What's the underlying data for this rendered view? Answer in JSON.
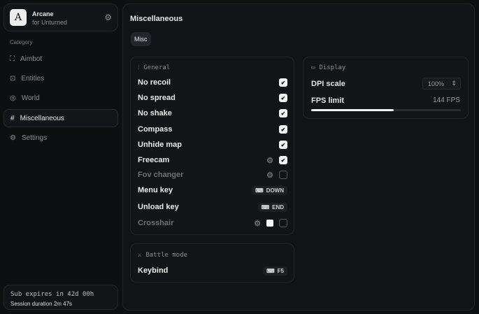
{
  "app": {
    "logo_letter": "A",
    "name": "Arcane",
    "subtitle": "for Unturned"
  },
  "sidebar": {
    "category_label": "Category",
    "items": [
      {
        "label": "Aimbot",
        "icon": "crosshair-icon",
        "active": false
      },
      {
        "label": "Entities",
        "icon": "scan-face-icon",
        "active": false
      },
      {
        "label": "World",
        "icon": "globe-icon",
        "active": false
      },
      {
        "label": "Miscellaneous",
        "icon": "grid-icon",
        "active": true
      },
      {
        "label": "Settings",
        "icon": "gear-icon",
        "active": false
      }
    ]
  },
  "subscription": {
    "expires": "Sub expires in 42d 00h",
    "session": "Session duration 2m 47s"
  },
  "main": {
    "title": "Miscellaneous",
    "tab": "Misc"
  },
  "general": {
    "title": "General",
    "rows": [
      {
        "label": "No recoil",
        "checked": true
      },
      {
        "label": "No spread",
        "checked": true
      },
      {
        "label": "No shake",
        "checked": true
      },
      {
        "label": "Compass",
        "checked": true
      },
      {
        "label": "Unhide map",
        "checked": true
      },
      {
        "label": "Freecam",
        "checked": true,
        "gear": true
      },
      {
        "label": "Fov changer",
        "checked": false,
        "gear": true,
        "dim": true
      },
      {
        "label": "Menu key",
        "key": "DOWN"
      },
      {
        "label": "Unload key",
        "key": "END"
      },
      {
        "label": "Crosshair",
        "gear": true,
        "color": "#ffffff",
        "checked": false,
        "dim": true
      }
    ]
  },
  "battle": {
    "title": "Battle mode",
    "keybind_label": "Keybind",
    "keybind_value": "F5"
  },
  "display": {
    "title": "Display",
    "dpi_label": "DPI scale",
    "dpi_value": "100%",
    "fps_label": "FPS limit",
    "fps_value": "144 FPS",
    "fps_slider_percent": 55
  }
}
